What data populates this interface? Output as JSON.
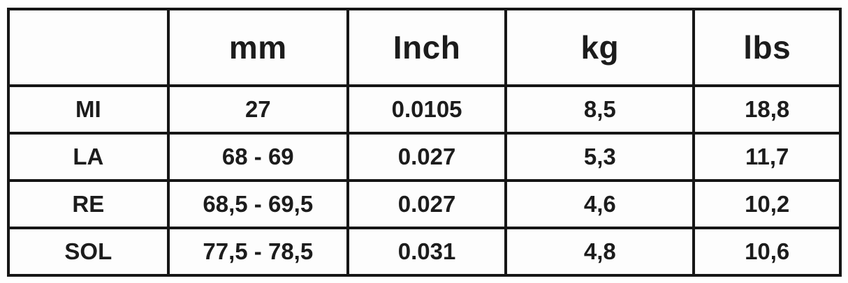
{
  "table": {
    "columns": [
      "",
      "mm",
      "Inch",
      "kg",
      "lbs"
    ],
    "rows": [
      [
        "MI",
        "27",
        "0.0105",
        "8,5",
        "18,8"
      ],
      [
        "LA",
        "68 - 69",
        "0.027",
        "5,3",
        "11,7"
      ],
      [
        "RE",
        "68,5 - 69,5",
        "0.027",
        "4,6",
        "10,2"
      ],
      [
        "SOL",
        "77,5 - 78,5",
        "0.031",
        "4,8",
        "10,6"
      ]
    ],
    "colors": {
      "border": "#161616",
      "text": "#1c1c1c",
      "cell_background": "#fdfdfd"
    }
  }
}
